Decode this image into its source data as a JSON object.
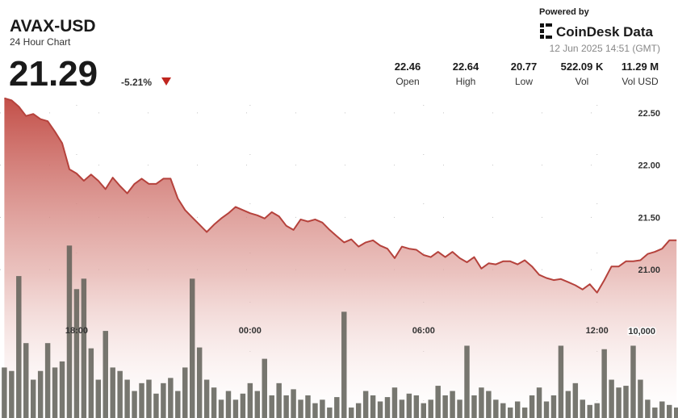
{
  "header": {
    "symbol": "AVAX-USD",
    "subtitle": "24 Hour Chart",
    "price": 21.29,
    "change": "-5.21%"
  },
  "stats": [
    {
      "value": "22.46",
      "label": "Open"
    },
    {
      "value": "22.64",
      "label": "High"
    },
    {
      "value": "20.77",
      "label": "Low"
    },
    {
      "value": "522.09 K",
      "label": "Vol"
    },
    {
      "value": "11.29 M",
      "label": "Vol USD"
    }
  ],
  "brand": {
    "powered_by": "Powered by",
    "name": "CoinDesk Data",
    "timestamp": "12 Jun 2025 14:51 (GMT)"
  },
  "chart_data": {
    "type": "area",
    "x": [
      15.5,
      15.75,
      16,
      16.25,
      16.5,
      16.75,
      17,
      17.25,
      17.5,
      17.75,
      18,
      18.25,
      18.5,
      18.75,
      19,
      19.25,
      19.5,
      19.75,
      20,
      20.25,
      20.5,
      20.75,
      21,
      21.25,
      21.5,
      21.75,
      22,
      22.25,
      22.5,
      22.75,
      23,
      23.25,
      23.5,
      23.75,
      24,
      24.25,
      24.5,
      24.75,
      25,
      25.25,
      25.5,
      25.75,
      26,
      26.25,
      26.5,
      26.75,
      27,
      27.25,
      27.5,
      27.75,
      28,
      28.25,
      28.5,
      28.75,
      29,
      29.25,
      29.5,
      29.75,
      30,
      30.25,
      30.5,
      30.75,
      31,
      31.25,
      31.5,
      31.75,
      32,
      32.25,
      32.5,
      32.75,
      33,
      33.25,
      33.5,
      33.75,
      34,
      34.25,
      34.5,
      34.75,
      35,
      35.25,
      35.5,
      35.75,
      36,
      36.25,
      36.5,
      36.75,
      37,
      37.25,
      37.5,
      37.75,
      38,
      38.25,
      38.5,
      38.75
    ],
    "xlim": [
      15.35,
      38.8
    ],
    "xticks": [
      {
        "value": 18,
        "label": "18:00"
      },
      {
        "value": 24,
        "label": "00:00"
      },
      {
        "value": 30,
        "label": "06:00"
      },
      {
        "value": 36,
        "label": "12:00"
      }
    ],
    "ylim": [
      19.58,
      23.58
    ],
    "yticks": [
      {
        "value": 22.5,
        "label": "22.50"
      },
      {
        "value": 22,
        "label": "22.00"
      },
      {
        "value": 21.5,
        "label": "21.50"
      },
      {
        "value": 21,
        "label": "21.00"
      }
    ],
    "y2lim": [
      0,
      48000
    ],
    "y2ticks": [
      {
        "value": 10000,
        "label": "10,000"
      }
    ],
    "grid": true,
    "series": [
      {
        "color": "#b5423c",
        "values": [
          22.64,
          22.62,
          22.56,
          22.47,
          22.49,
          22.44,
          22.42,
          22.32,
          22.21,
          21.96,
          21.92,
          21.85,
          21.91,
          21.85,
          21.77,
          21.88,
          21.8,
          21.73,
          21.82,
          21.87,
          21.82,
          21.82,
          21.87,
          21.87,
          21.68,
          21.57,
          21.5,
          21.43,
          21.36,
          21.43,
          21.49,
          21.54,
          21.6,
          21.57,
          21.54,
          21.52,
          21.49,
          21.55,
          21.51,
          21.42,
          21.38,
          21.48,
          21.46,
          21.48,
          21.45,
          21.38,
          21.32,
          21.26,
          21.29,
          21.22,
          21.26,
          21.28,
          21.23,
          21.2,
          21.11,
          21.22,
          21.2,
          21.19,
          21.14,
          21.12,
          21.17,
          21.12,
          21.17,
          21.11,
          21.07,
          21.12,
          21.01,
          21.06,
          21.05,
          21.08,
          21.08,
          21.05,
          21.09,
          21.03,
          20.95,
          20.92,
          20.9,
          20.91,
          20.88,
          20.85,
          20.81,
          20.86,
          20.78,
          20.9,
          21.03,
          21.03,
          21.08,
          21.08,
          21.09,
          21.15,
          21.17,
          21.2,
          21.28,
          21.28
        ]
      },
      {
        "type": "bar",
        "axis": "y2",
        "color": "#5f5f57",
        "values": [
          5800,
          5400,
          16300,
          8600,
          4400,
          5400,
          8600,
          5800,
          6500,
          19800,
          14800,
          16000,
          8000,
          4400,
          10000,
          5800,
          5400,
          4400,
          3100,
          4000,
          4400,
          2800,
          4000,
          4600,
          3100,
          5800,
          16000,
          8100,
          4400,
          3500,
          2100,
          3100,
          2100,
          2800,
          4000,
          3100,
          6800,
          2600,
          4000,
          2600,
          3300,
          2100,
          2600,
          1700,
          2100,
          1200,
          2400,
          12200,
          1200,
          1700,
          3100,
          2600,
          1900,
          2400,
          3500,
          2100,
          2800,
          2600,
          1700,
          2100,
          3700,
          2600,
          3100,
          2100,
          8300,
          2600,
          3500,
          3100,
          2100,
          1700,
          1200,
          1900,
          1200,
          2600,
          3500,
          1900,
          2600,
          8300,
          3100,
          4000,
          2100,
          1500,
          1700,
          7900,
          4400,
          3500,
          3700,
          8300,
          4400,
          2100,
          1200,
          1900,
          1500,
          1200
        ]
      }
    ]
  }
}
